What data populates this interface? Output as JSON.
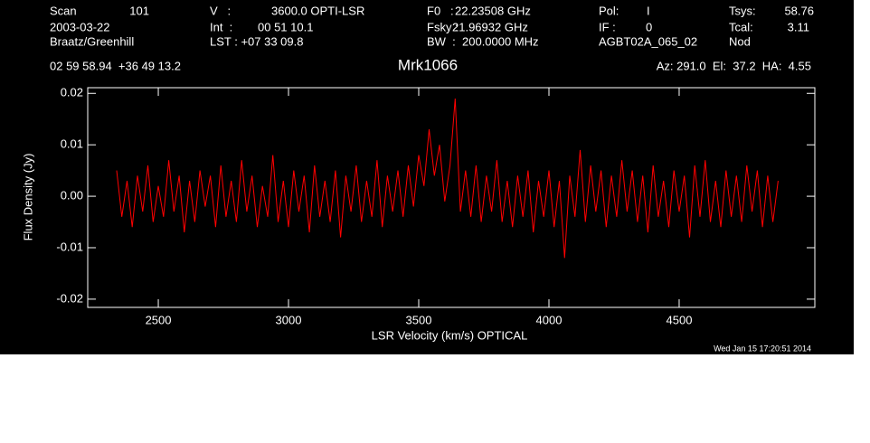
{
  "chart_data": {
    "type": "line",
    "title": "Mrk1066",
    "annotations": [
      "Scan",
      "101",
      "V   :",
      "3600.0 OPTI-LSR",
      "F0   :",
      "22.23508 GHz",
      "Pol:",
      "I",
      "Tsys:",
      "58.76",
      "2003-03-22",
      "Int  :",
      "00 51 10.1",
      "Fsky :",
      "21.96932 GHz",
      "IF :",
      "0",
      "Tcal:",
      "3.11",
      "Braatz/Greenhill",
      "LST : +07 33 09.8",
      "BW  :  200.0000 MHz",
      "AGBT02A_065_02",
      "Nod",
      "02 59 58.94  +36 49 13.2",
      "Az: 291.0  El:  37.2  HA:  4.55",
      "Wed Jan 15 17:20:51 2014"
    ],
    "xlabel": "LSR Velocity (km/s) OPTICAL",
    "ylabel": "Flux Density (Jy)",
    "color": "#ff0000",
    "xlim": [
      2229,
      5021
    ],
    "ylim": [
      -0.0216,
      0.0211
    ],
    "xticks": [
      2500,
      3000,
      3500,
      4000,
      4500
    ],
    "yticks": [
      -0.02,
      -0.01,
      {
        "value": 0,
        "label": "0.00"
      },
      0.01,
      0.02
    ],
    "x": [
      2340,
      2360,
      2380,
      2400,
      2420,
      2440,
      2460,
      2480,
      2500,
      2520,
      2540,
      2560,
      2580,
      2600,
      2620,
      2640,
      2660,
      2680,
      2700,
      2720,
      2740,
      2760,
      2780,
      2800,
      2820,
      2840,
      2860,
      2880,
      2900,
      2920,
      2940,
      2960,
      2980,
      3000,
      3020,
      3040,
      3060,
      3080,
      3100,
      3120,
      3140,
      3160,
      3180,
      3200,
      3220,
      3240,
      3260,
      3280,
      3300,
      3320,
      3340,
      3360,
      3380,
      3400,
      3420,
      3440,
      3460,
      3480,
      3500,
      3520,
      3540,
      3560,
      3580,
      3600,
      3620,
      3640,
      3660,
      3680,
      3700,
      3720,
      3740,
      3760,
      3780,
      3800,
      3820,
      3840,
      3860,
      3880,
      3900,
      3920,
      3940,
      3960,
      3980,
      4000,
      4020,
      4040,
      4060,
      4080,
      4100,
      4120,
      4140,
      4160,
      4180,
      4200,
      4220,
      4240,
      4260,
      4280,
      4300,
      4320,
      4340,
      4360,
      4380,
      4400,
      4420,
      4440,
      4460,
      4480,
      4500,
      4520,
      4540,
      4560,
      4580,
      4600,
      4620,
      4640,
      4660,
      4680,
      4700,
      4720,
      4740,
      4760,
      4780,
      4800,
      4820,
      4840,
      4860,
      4880
    ],
    "values": [
      0.005,
      -0.004,
      0.003,
      -0.006,
      0.004,
      -0.003,
      0.006,
      -0.005,
      0.002,
      -0.004,
      0.007,
      -0.003,
      0.004,
      -0.007,
      0.003,
      -0.005,
      0.005,
      -0.002,
      0.004,
      -0.006,
      0.006,
      -0.004,
      0.003,
      -0.005,
      0.007,
      -0.003,
      0.004,
      -0.006,
      0.002,
      -0.004,
      0.008,
      -0.005,
      0.003,
      -0.006,
      0.005,
      -0.003,
      0.004,
      -0.007,
      0.006,
      -0.004,
      0.003,
      -0.005,
      0.005,
      -0.008,
      0.004,
      -0.003,
      0.006,
      -0.005,
      0.003,
      -0.004,
      0.007,
      -0.006,
      0.004,
      -0.003,
      0.005,
      -0.004,
      0.006,
      -0.002,
      0.008,
      0.002,
      0.013,
      0.004,
      0.01,
      -0.001,
      0.006,
      0.019,
      -0.003,
      0.005,
      -0.004,
      0.006,
      -0.005,
      0.004,
      -0.003,
      0.007,
      -0.005,
      0.003,
      -0.006,
      0.004,
      -0.004,
      0.005,
      -0.007,
      0.003,
      -0.004,
      0.005,
      -0.006,
      0.003,
      -0.012,
      0.004,
      -0.004,
      0.009,
      -0.005,
      0.006,
      -0.003,
      0.005,
      -0.006,
      0.004,
      -0.004,
      0.007,
      -0.003,
      0.005,
      -0.005,
      0.004,
      -0.007,
      0.006,
      -0.004,
      0.003,
      -0.006,
      0.005,
      -0.003,
      0.004,
      -0.008,
      0.006,
      -0.004,
      0.007,
      -0.005,
      0.003,
      -0.006,
      0.005,
      -0.004,
      0.004,
      -0.005,
      0.006,
      -0.003,
      0.005,
      -0.006,
      0.004,
      -0.005,
      0.003
    ]
  }
}
